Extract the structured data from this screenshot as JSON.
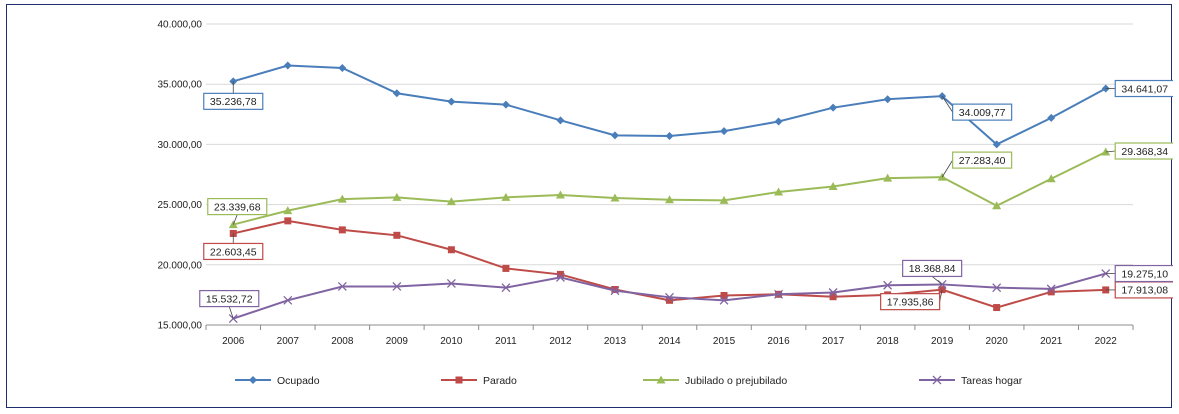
{
  "chart_data": {
    "type": "line",
    "title": "",
    "xlabel": "",
    "ylabel": "",
    "ylim": [
      15000,
      40000
    ],
    "y_ticks": [
      "15.000,00",
      "20.000,00",
      "25.000,00",
      "30.000,00",
      "35.000,00",
      "40.000,00"
    ],
    "grid": "horizontal",
    "legend_position": "bottom",
    "categories": [
      "2006",
      "2007",
      "2008",
      "2009",
      "2010",
      "2011",
      "2012",
      "2013",
      "2014",
      "2015",
      "2016",
      "2017",
      "2018",
      "2019",
      "2020",
      "2021",
      "2022"
    ],
    "series": [
      {
        "name": "Ocupado",
        "color": "#4a7ebb",
        "marker": "diamond",
        "values": [
          35236.78,
          36550,
          36350,
          34250,
          33550,
          33300,
          32000,
          30750,
          30700,
          31100,
          31900,
          33050,
          33750,
          34009.77,
          30000,
          32200,
          34641.07
        ]
      },
      {
        "name": "Parado",
        "color": "#be4b48",
        "marker": "square",
        "values": [
          22603.45,
          23650,
          22900,
          22450,
          21250,
          19700,
          19200,
          17950,
          17050,
          17450,
          17550,
          17350,
          17500,
          17935.86,
          16450,
          17750,
          17913.08
        ]
      },
      {
        "name": "Jubilado o prejubilado",
        "color": "#9bbb59",
        "marker": "triangle",
        "values": [
          23339.68,
          24500,
          25450,
          25600,
          25250,
          25600,
          25800,
          25550,
          25400,
          25350,
          26050,
          26500,
          27200,
          27283.4,
          24900,
          27150,
          29368.34
        ]
      },
      {
        "name": "Tareas hogar",
        "color": "#8064a2",
        "marker": "x",
        "values": [
          15532.72,
          17050,
          18200,
          18200,
          18450,
          18100,
          18950,
          17850,
          17300,
          17050,
          17550,
          17700,
          18300,
          18368.84,
          18100,
          18000,
          19275.1
        ]
      }
    ],
    "annotations": [
      {
        "text": "35.236,78",
        "series": 0,
        "index": 0
      },
      {
        "text": "34.009,77",
        "series": 0,
        "index": 13
      },
      {
        "text": "34.641,07",
        "series": 0,
        "index": 16
      },
      {
        "text": "22.603,45",
        "series": 1,
        "index": 0
      },
      {
        "text": "17.935,86",
        "series": 1,
        "index": 13
      },
      {
        "text": "17.913,08",
        "series": 1,
        "index": 16
      },
      {
        "text": "23.339,68",
        "series": 2,
        "index": 0
      },
      {
        "text": "27.283,40",
        "series": 2,
        "index": 13
      },
      {
        "text": "29.368,34",
        "series": 2,
        "index": 16
      },
      {
        "text": "15.532,72",
        "series": 3,
        "index": 0
      },
      {
        "text": "18.368,84",
        "series": 3,
        "index": 13
      },
      {
        "text": "19.275,10",
        "series": 3,
        "index": 16
      }
    ]
  }
}
